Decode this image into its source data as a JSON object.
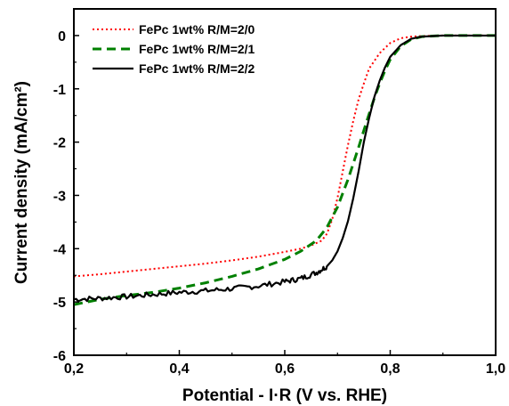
{
  "chart_data": {
    "type": "line",
    "title": "",
    "xlabel": "Potential - I·R (V vs. RHE)",
    "ylabel": "Current density (mA/cm²)",
    "xlim": [
      0.2,
      1.0
    ],
    "ylim": [
      -6,
      0.5
    ],
    "x_ticks": [
      "0,2",
      "0,4",
      "0,6",
      "0,8",
      "1,0"
    ],
    "x_tick_values": [
      0.2,
      0.4,
      0.6,
      0.8,
      1.0
    ],
    "y_ticks": [
      "-6",
      "-5",
      "-4",
      "-3",
      "-2",
      "-1",
      "0"
    ],
    "y_tick_values": [
      -6,
      -5,
      -4,
      -3,
      -2,
      -1,
      0
    ],
    "grid": false,
    "legend_position": "top-left",
    "series": [
      {
        "name": "FePc 1wt% R/M=2/0",
        "color": "#ff0000",
        "dash": "dotted",
        "x": [
          0.2,
          0.25,
          0.3,
          0.35,
          0.4,
          0.45,
          0.5,
          0.55,
          0.6,
          0.63,
          0.65,
          0.67,
          0.68,
          0.69,
          0.7,
          0.71,
          0.72,
          0.73,
          0.74,
          0.75,
          0.76,
          0.78,
          0.8,
          0.82,
          0.84,
          0.86,
          0.9,
          1.0
        ],
        "y": [
          -4.52,
          -4.48,
          -4.43,
          -4.38,
          -4.33,
          -4.28,
          -4.22,
          -4.15,
          -4.06,
          -4.0,
          -3.94,
          -3.85,
          -3.72,
          -3.45,
          -3.05,
          -2.55,
          -2.05,
          -1.6,
          -1.2,
          -0.9,
          -0.62,
          -0.33,
          -0.14,
          -0.05,
          -0.02,
          -0.01,
          0.0,
          0.0
        ]
      },
      {
        "name": "FePc 1wt% R/M=2/1",
        "color": "#008000",
        "dash": "dashed",
        "x": [
          0.2,
          0.25,
          0.3,
          0.35,
          0.4,
          0.45,
          0.5,
          0.55,
          0.6,
          0.63,
          0.66,
          0.68,
          0.7,
          0.72,
          0.74,
          0.75,
          0.76,
          0.77,
          0.78,
          0.79,
          0.8,
          0.82,
          0.84,
          0.86,
          0.88,
          0.9,
          1.0
        ],
        "y": [
          -5.05,
          -4.95,
          -4.88,
          -4.82,
          -4.74,
          -4.64,
          -4.52,
          -4.38,
          -4.2,
          -4.05,
          -3.85,
          -3.6,
          -3.22,
          -2.7,
          -2.1,
          -1.78,
          -1.47,
          -1.17,
          -0.9,
          -0.66,
          -0.45,
          -0.2,
          -0.07,
          -0.02,
          -0.01,
          0.0,
          0.0
        ]
      },
      {
        "name": "FePc 1wt% R/M=2/2",
        "color": "#000000",
        "dash": "solid",
        "noise": true,
        "x": [
          0.2,
          0.25,
          0.3,
          0.35,
          0.4,
          0.45,
          0.5,
          0.55,
          0.6,
          0.63,
          0.66,
          0.68,
          0.69,
          0.7,
          0.71,
          0.72,
          0.73,
          0.74,
          0.75,
          0.76,
          0.77,
          0.78,
          0.79,
          0.8,
          0.82,
          0.84,
          0.86,
          0.88,
          0.9,
          0.95,
          1.0
        ],
        "y": [
          -4.95,
          -4.93,
          -4.9,
          -4.86,
          -4.82,
          -4.79,
          -4.75,
          -4.7,
          -4.62,
          -4.56,
          -4.45,
          -4.33,
          -4.22,
          -4.05,
          -3.8,
          -3.48,
          -3.05,
          -2.55,
          -2.0,
          -1.55,
          -1.15,
          -0.85,
          -0.6,
          -0.4,
          -0.18,
          -0.06,
          -0.02,
          -0.01,
          0.0,
          0.0,
          0.0
        ]
      }
    ]
  }
}
